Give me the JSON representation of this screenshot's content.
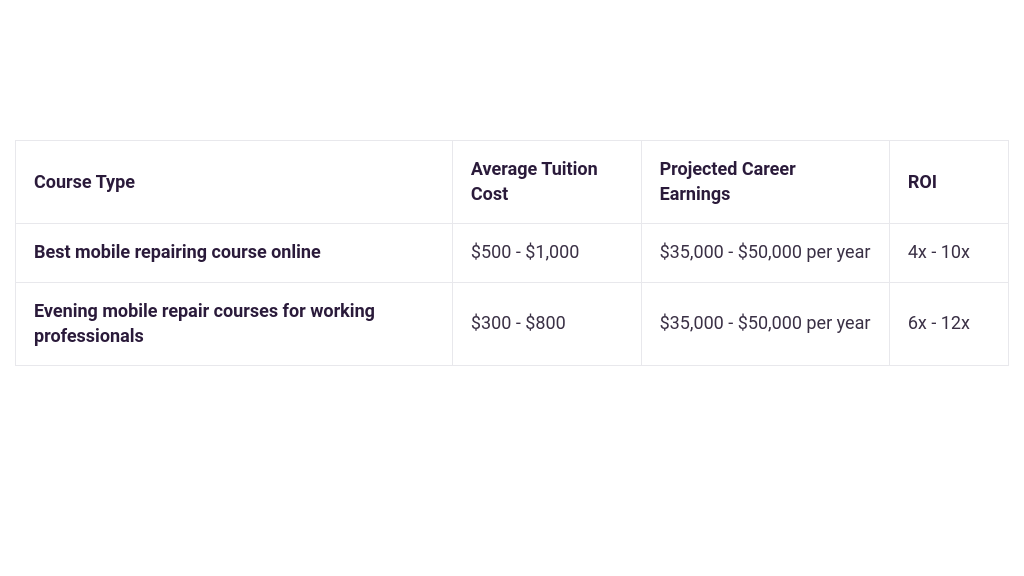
{
  "table": {
    "columns": [
      {
        "label": "Course Type",
        "width": "44%"
      },
      {
        "label": "Average Tuition Cost",
        "width": "19%"
      },
      {
        "label": "Projected Career Earnings",
        "width": "25%"
      },
      {
        "label": "ROI",
        "width": "12%"
      }
    ],
    "rows": [
      {
        "course": "Best mobile repairing course online",
        "tuition": "$500 - $1,000",
        "earnings": "$35,000 - $50,000 per year",
        "roi": "4x - 10x"
      },
      {
        "course": "Evening mobile repair courses for working professionals",
        "tuition": "$300 - $800",
        "earnings": "$35,000 - $50,000 per year",
        "roi": "6x - 12x"
      }
    ],
    "styling": {
      "border_color": "#e8e8ec",
      "header_text_color": "#2a1a3a",
      "body_text_color": "#3a3045",
      "background_color": "#ffffff",
      "font_size_pt": 14,
      "header_font_weight": 700,
      "course_name_font_weight": 700,
      "cell_font_weight": 400
    }
  }
}
